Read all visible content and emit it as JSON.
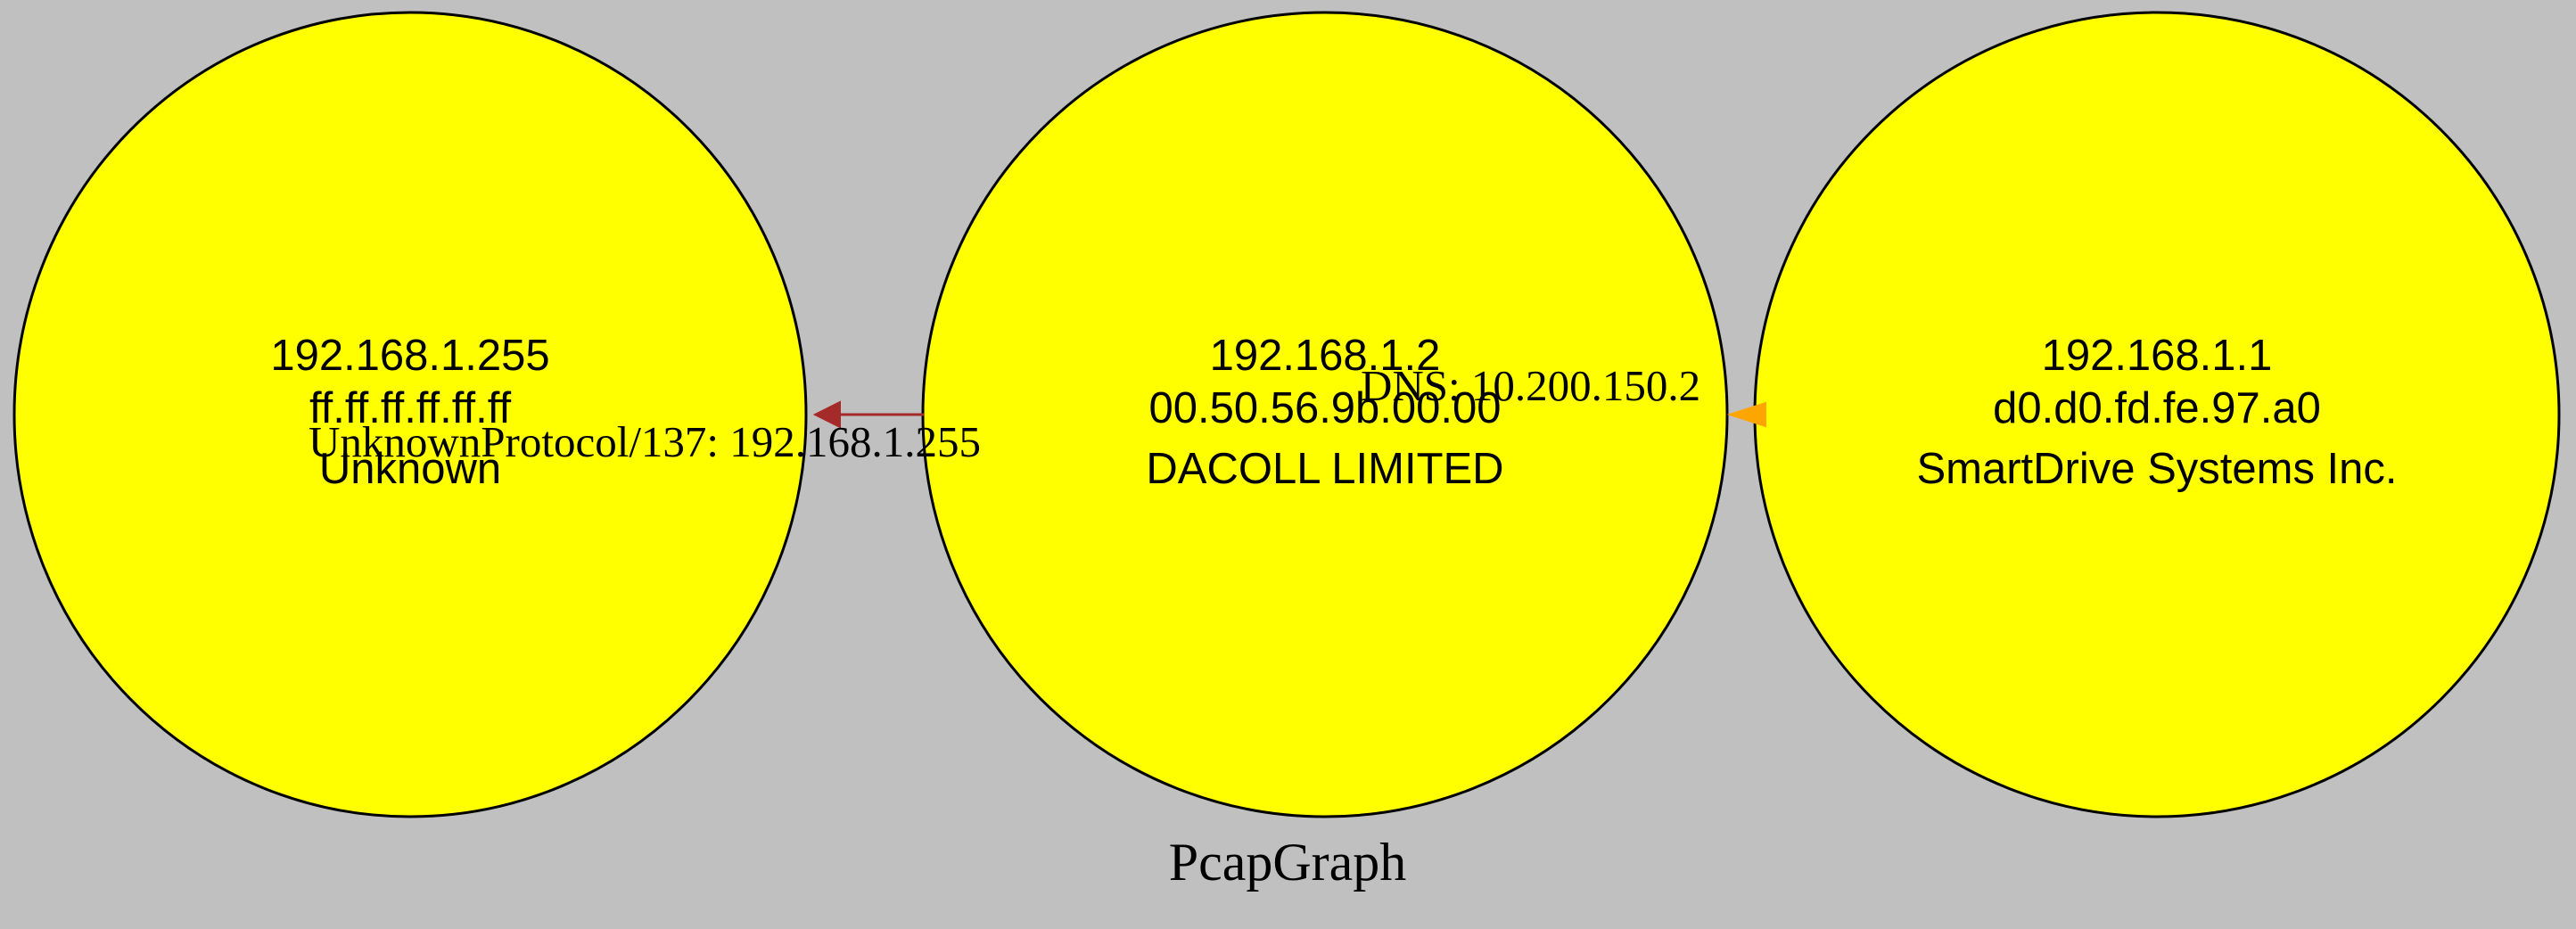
{
  "graph": {
    "title": "PcapGraph",
    "background_color": "#c0c0c0",
    "node_fill_color": "#ffff00",
    "node_stroke_color": "#000000"
  },
  "nodes": {
    "broadcast": {
      "ip": "192.168.1.255",
      "mac": "ff.ff.ff.ff.ff.ff",
      "vendor": "Unknown"
    },
    "host": {
      "ip": "192.168.1.2",
      "mac": "00.50.56.9b.00.00",
      "vendor": "DACOLL LIMITED"
    },
    "gateway": {
      "ip": "192.168.1.1",
      "mac": "d0.d0.fd.fe.97.a0",
      "vendor": "SmartDrive Systems Inc."
    }
  },
  "edges": {
    "host_to_broadcast": {
      "label": "UnknownProtocol/137: 192.168.1.255",
      "color": "#a52a2a"
    },
    "gateway_to_host": {
      "label": "DNS: 10.200.150.2",
      "color": "#ffa500"
    }
  }
}
